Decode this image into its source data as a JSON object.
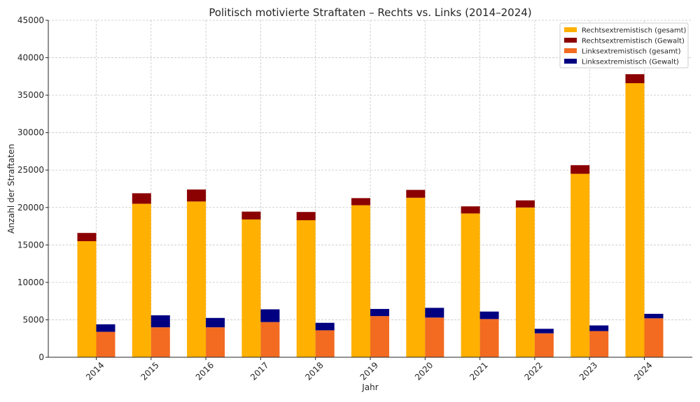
{
  "chart_data": {
    "type": "bar",
    "title": "Politisch motivierte Straftaten – Rechts vs. Links (2014–2024)",
    "xlabel": "Jahr",
    "ylabel": "Anzahl der Straftaten",
    "ylim": [
      0,
      45000
    ],
    "yticks": [
      0,
      5000,
      10000,
      15000,
      20000,
      25000,
      30000,
      35000,
      40000,
      45000
    ],
    "categories": [
      "2014",
      "2015",
      "2016",
      "2017",
      "2018",
      "2019",
      "2020",
      "2021",
      "2022",
      "2023",
      "2024"
    ],
    "stacking": "stacked pairs: Gewalt stacked on gesamt",
    "grid": true,
    "legend_position": "top-right",
    "series": [
      {
        "name": "Rechtsextremistisch (gesamt)",
        "color": "#FFB000",
        "group": "rechts",
        "stack_order": 0,
        "values": [
          15500,
          20500,
          20800,
          18400,
          18300,
          20300,
          21300,
          19200,
          20000,
          24500,
          36600
        ]
      },
      {
        "name": "Rechtsextremistisch (Gewalt)",
        "color": "#8B0000",
        "group": "rechts",
        "stack_order": 1,
        "values": [
          1100,
          1400,
          1600,
          1050,
          1100,
          950,
          1050,
          950,
          950,
          1150,
          1200
        ]
      },
      {
        "name": "Linksextremistisch (gesamt)",
        "color": "#F26B21",
        "group": "links",
        "stack_order": 0,
        "values": [
          3400,
          4000,
          4000,
          4700,
          3600,
          5500,
          5300,
          5100,
          3200,
          3500,
          5200
        ]
      },
      {
        "name": "Linksextremistisch (Gewalt)",
        "color": "#000080",
        "group": "links",
        "stack_order": 1,
        "values": [
          1000,
          1600,
          1250,
          1700,
          1000,
          950,
          1300,
          1000,
          600,
          750,
          600
        ]
      }
    ]
  }
}
